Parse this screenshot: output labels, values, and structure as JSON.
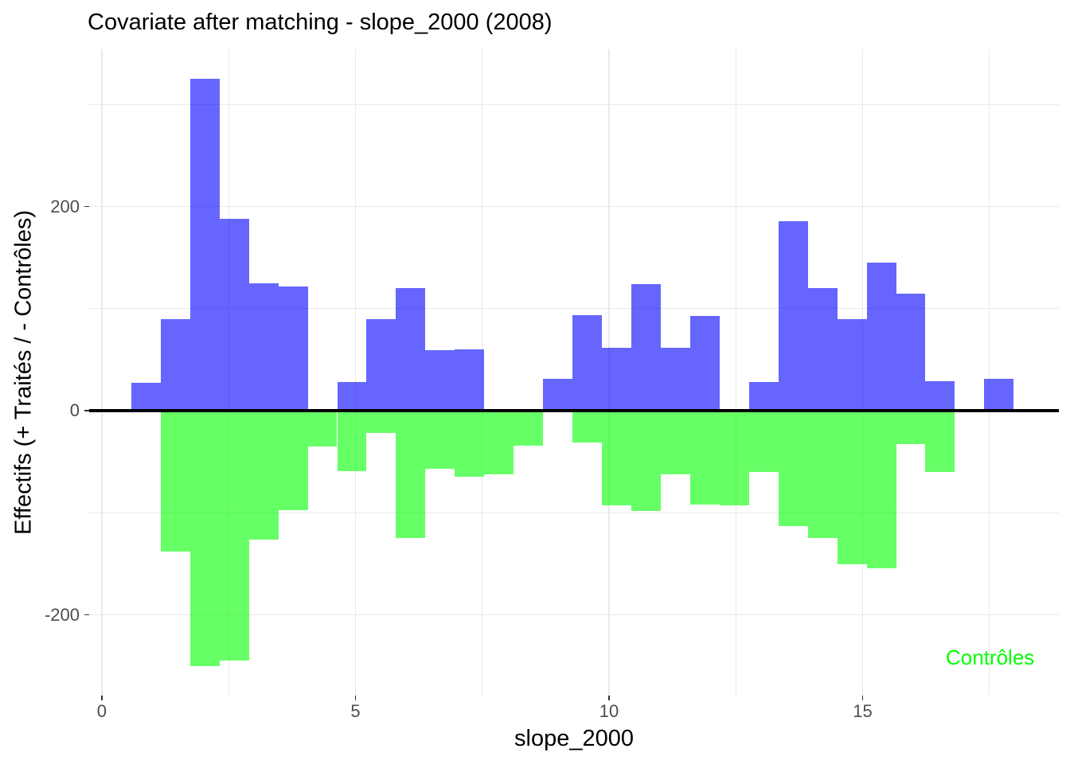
{
  "title": "Covariate after matching - slope_2000 (2008)",
  "x_axis": {
    "label": "slope_2000"
  },
  "y_axis": {
    "label": "Effectifs (+ Traités / - Contrôles)"
  },
  "annotation": {
    "text": "Contrôles",
    "color": "#00FF00",
    "position": "bottom-right"
  },
  "colors": {
    "treated_fill": "rgba(0,0,255,0.6)",
    "controls_fill": "rgba(0,255,0,0.6)",
    "treated_fill_hex": "#6666FF",
    "controls_fill_hex": "#66FF66",
    "gridline": "#E8E8E8",
    "axis_text": "#4D4D4D",
    "tick_mark": "#333333",
    "zero_line": "#000000",
    "background": "#FFFFFF"
  },
  "chart_data": {
    "type": "bar",
    "subtype": "mirrored_histogram",
    "title": "Covariate after matching - slope_2000 (2008)",
    "xlabel": "slope_2000",
    "ylabel": "Effectifs (+ Traités / - Contrôles)",
    "bin_start": 0.58,
    "bin_width": 0.58,
    "n_bins": 30,
    "series": [
      {
        "name": "Traités",
        "sign": "positive",
        "color": "rgba(0,0,255,0.6)",
        "values": [
          27,
          90,
          325,
          188,
          125,
          122,
          0,
          28,
          90,
          120,
          59,
          60,
          0,
          0,
          31,
          94,
          62,
          124,
          62,
          93,
          0,
          28,
          186,
          120,
          90,
          145,
          115,
          29,
          0,
          31
        ]
      },
      {
        "name": "Contrôles",
        "sign": "negative",
        "color": "rgba(0,255,0,0.6)",
        "values": [
          0,
          -138,
          -250,
          -245,
          -126,
          -97,
          -35,
          -59,
          -22,
          -125,
          -57,
          -65,
          -62,
          -34,
          0,
          -31,
          -93,
          -98,
          -62,
          -92,
          -93,
          -60,
          -113,
          -125,
          -150,
          -154,
          -33,
          -60,
          0,
          0
        ]
      }
    ],
    "x_ticks": [
      0,
      5,
      10,
      15
    ],
    "x_minor_ticks": [
      2.5,
      7.5,
      12.5,
      17.5
    ],
    "y_ticks": [
      200,
      0,
      -200
    ],
    "y_minor_ticks": [
      300,
      100,
      -100
    ],
    "xlim": [
      -0.25,
      18.87
    ],
    "ylim": [
      -279,
      354
    ],
    "grid": true,
    "legend_position": "none",
    "zero_line": true,
    "annotation_text": "Contrôles"
  }
}
